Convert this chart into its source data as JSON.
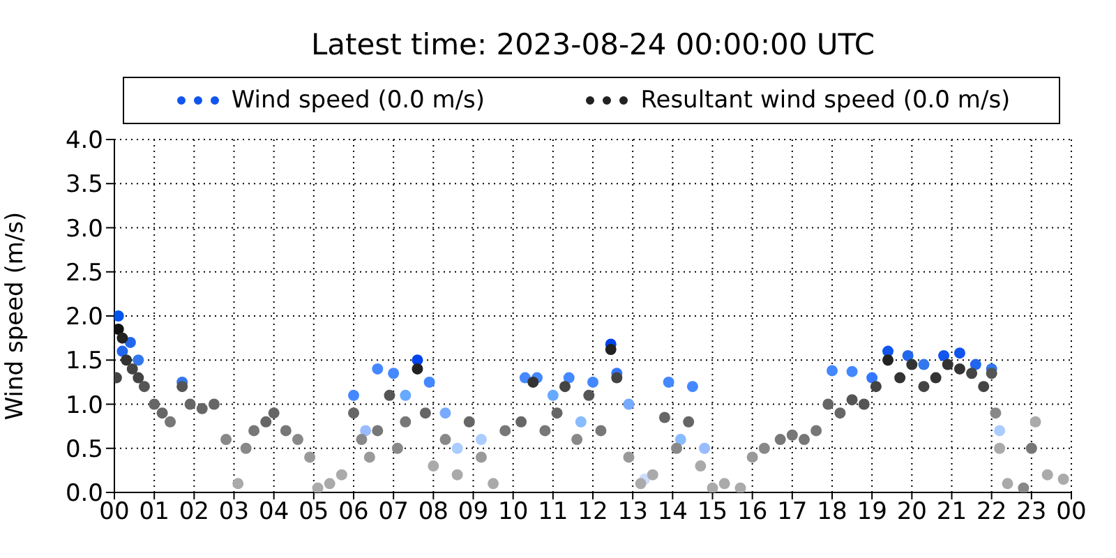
{
  "chart_data": {
    "type": "scatter",
    "title": "Latest time: 2023-08-24 00:00:00 UTC",
    "ylabel": "Wind speed (m/s)",
    "xlim": [
      0,
      24
    ],
    "xticks": [
      {
        "value": 0,
        "label": "00"
      },
      {
        "value": 1,
        "label": "01"
      },
      {
        "value": 2,
        "label": "02"
      },
      {
        "value": 3,
        "label": "03"
      },
      {
        "value": 4,
        "label": "04"
      },
      {
        "value": 5,
        "label": "05"
      },
      {
        "value": 6,
        "label": "06"
      },
      {
        "value": 7,
        "label": "07"
      },
      {
        "value": 8,
        "label": "08"
      },
      {
        "value": 9,
        "label": "09"
      },
      {
        "value": 10,
        "label": "10"
      },
      {
        "value": 11,
        "label": "11"
      },
      {
        "value": 12,
        "label": "12"
      },
      {
        "value": 13,
        "label": "13"
      },
      {
        "value": 14,
        "label": "14"
      },
      {
        "value": 15,
        "label": "15"
      },
      {
        "value": 16,
        "label": "16"
      },
      {
        "value": 17,
        "label": "17"
      },
      {
        "value": 18,
        "label": "18"
      },
      {
        "value": 19,
        "label": "19"
      },
      {
        "value": 20,
        "label": "20"
      },
      {
        "value": 21,
        "label": "21"
      },
      {
        "value": 22,
        "label": "22"
      },
      {
        "value": 23,
        "label": "23"
      },
      {
        "value": 24,
        "label": "00"
      }
    ],
    "ylim": [
      0,
      4
    ],
    "yticks": [
      {
        "value": 0,
        "label": "0.0"
      },
      {
        "value": 0.5,
        "label": "0.5"
      },
      {
        "value": 1,
        "label": "1.0"
      },
      {
        "value": 1.5,
        "label": "1.5"
      },
      {
        "value": 2,
        "label": "2.0"
      },
      {
        "value": 2.5,
        "label": "2.5"
      },
      {
        "value": 3,
        "label": "3.0"
      },
      {
        "value": 3.5,
        "label": "3.5"
      },
      {
        "value": 4,
        "label": "4.0"
      }
    ],
    "grid": true,
    "legend": "top",
    "marker": "circle",
    "series": [
      {
        "name": "Wind speed (0.0 m/s)",
        "color": "#1155ee",
        "colors": [
          "#0055ee",
          "#2266ee",
          "#2266ee",
          "#3377ee",
          "#3377ee",
          "#4488ff",
          "#99bbff",
          "#4488ff",
          "#4488ff",
          "#66aaff",
          "#0044ee",
          "#4488ff",
          "#77aaff",
          "#aaccff",
          "#aaccff",
          "#4488ff",
          "#4488ff",
          "#66aaff",
          "#4488ff",
          "#88bbff",
          "#4488ff",
          "#0044ee",
          "#3377ff",
          "#77aaff",
          "#ccddff",
          "#4488ff",
          "#88bbff",
          "#4488ff",
          "#99bbff",
          "#4488ff",
          "#4488ff",
          "#3377ff",
          "#1155ee",
          "#2266ee",
          "#3377ee",
          "#1155ee",
          "#1155ee",
          "#2266ee",
          "#3377ee",
          "#aaccff"
        ],
        "x": [
          0.1,
          0.2,
          0.4,
          0.6,
          1.7,
          6.0,
          6.3,
          6.6,
          7.0,
          7.3,
          7.6,
          7.9,
          8.3,
          8.6,
          9.2,
          10.3,
          10.6,
          11.0,
          11.4,
          11.7,
          12.0,
          12.45,
          12.6,
          12.9,
          13.3,
          13.9,
          14.2,
          14.5,
          14.8,
          18.0,
          18.5,
          19.0,
          19.4,
          19.9,
          20.3,
          20.8,
          21.2,
          21.6,
          22.0,
          22.2
        ],
        "values": [
          2.0,
          1.6,
          1.7,
          1.5,
          1.25,
          1.1,
          0.7,
          1.4,
          1.35,
          1.1,
          1.5,
          1.25,
          0.9,
          0.5,
          0.6,
          1.3,
          1.3,
          1.1,
          1.3,
          0.8,
          1.25,
          1.68,
          1.35,
          1.0,
          0.15,
          1.25,
          0.6,
          1.2,
          0.5,
          1.38,
          1.37,
          1.3,
          1.6,
          1.55,
          1.45,
          1.55,
          1.58,
          1.45,
          1.4,
          0.7
        ]
      },
      {
        "name": "Resultant wind speed (0.0 m/s)",
        "color": "#222222",
        "colors": [
          "#444444",
          "#111111",
          "#222222",
          "#333333",
          "#444444",
          "#444444",
          "#555555",
          "#666666",
          "#666666",
          "#777777",
          "#555555",
          "#666666",
          "#666666",
          "#666666",
          "#888888",
          "#aaaaaa",
          "#888888",
          "#777777",
          "#666666",
          "#666666",
          "#777777",
          "#888888",
          "#999999",
          "#aaaaaa",
          "#aaaaaa",
          "#aaaaaa",
          "#666666",
          "#888888",
          "#999999",
          "#777777",
          "#555555",
          "#888888",
          "#777777",
          "#222222",
          "#666666",
          "#aaaaaa",
          "#888888",
          "#aaaaaa",
          "#666666",
          "#999999",
          "#aaaaaa",
          "#777777",
          "#666666",
          "#333333",
          "#777777",
          "#666666",
          "#444444",
          "#888888",
          "#555555",
          "#777777",
          "#222222",
          "#444444",
          "#999999",
          "#aaaaaa",
          "#aaaaaa",
          "#666666",
          "#888888",
          "#666666",
          "#aaaaaa",
          "#aaaaaa",
          "#aaaaaa",
          "#aaaaaa",
          "#999999",
          "#888888",
          "#777777",
          "#777777",
          "#777777",
          "#777777",
          "#666666",
          "#666666",
          "#555555",
          "#555555",
          "#444444",
          "#222222",
          "#333333",
          "#333333",
          "#444444",
          "#333333",
          "#333333",
          "#333333",
          "#444444",
          "#444444",
          "#555555",
          "#888888",
          "#aaaaaa",
          "#aaaaaa",
          "#888888",
          "#777777",
          "#aaaaaa",
          "#aaaaaa",
          "#aaaaaa"
        ],
        "x": [
          0.05,
          0.1,
          0.2,
          0.3,
          0.45,
          0.6,
          0.75,
          1.0,
          1.2,
          1.4,
          1.7,
          1.9,
          2.2,
          2.5,
          2.8,
          3.1,
          3.3,
          3.5,
          3.8,
          4.0,
          4.3,
          4.6,
          4.9,
          5.1,
          5.4,
          5.7,
          6.0,
          6.2,
          6.4,
          6.6,
          6.9,
          7.1,
          7.3,
          7.6,
          7.8,
          8.0,
          8.3,
          8.6,
          8.9,
          9.2,
          9.5,
          9.8,
          10.2,
          10.5,
          10.8,
          11.1,
          11.3,
          11.6,
          11.9,
          12.2,
          12.45,
          12.6,
          12.9,
          13.2,
          13.5,
          13.8,
          14.1,
          14.4,
          14.7,
          15.0,
          15.3,
          15.7,
          16.0,
          16.3,
          16.7,
          17.0,
          17.3,
          17.6,
          17.9,
          18.2,
          18.5,
          18.8,
          19.1,
          19.4,
          19.7,
          20.0,
          20.3,
          20.6,
          20.9,
          21.2,
          21.5,
          21.8,
          22.0,
          22.1,
          22.2,
          22.4,
          22.8,
          23.0,
          23.1,
          23.4,
          23.8
        ],
        "values": [
          1.3,
          1.85,
          1.75,
          1.5,
          1.4,
          1.3,
          1.2,
          1.0,
          0.9,
          0.8,
          1.2,
          1.0,
          0.95,
          1.0,
          0.6,
          0.1,
          0.5,
          0.7,
          0.8,
          0.9,
          0.7,
          0.6,
          0.4,
          0.05,
          0.1,
          0.2,
          0.9,
          0.6,
          0.4,
          0.7,
          1.1,
          0.5,
          0.8,
          1.4,
          0.9,
          0.3,
          0.6,
          0.2,
          0.8,
          0.4,
          0.1,
          0.7,
          0.8,
          1.25,
          0.7,
          0.9,
          1.2,
          0.6,
          1.1,
          0.7,
          1.62,
          1.3,
          0.4,
          0.1,
          0.2,
          0.85,
          0.5,
          0.8,
          0.3,
          0.05,
          0.1,
          0.05,
          0.4,
          0.5,
          0.6,
          0.65,
          0.6,
          0.7,
          1.0,
          0.9,
          1.05,
          1.0,
          1.2,
          1.5,
          1.3,
          1.45,
          1.2,
          1.3,
          1.45,
          1.4,
          1.35,
          1.2,
          1.35,
          0.9,
          0.5,
          0.1,
          0.05,
          0.5,
          0.8,
          0.2,
          0.15
        ]
      }
    ]
  }
}
